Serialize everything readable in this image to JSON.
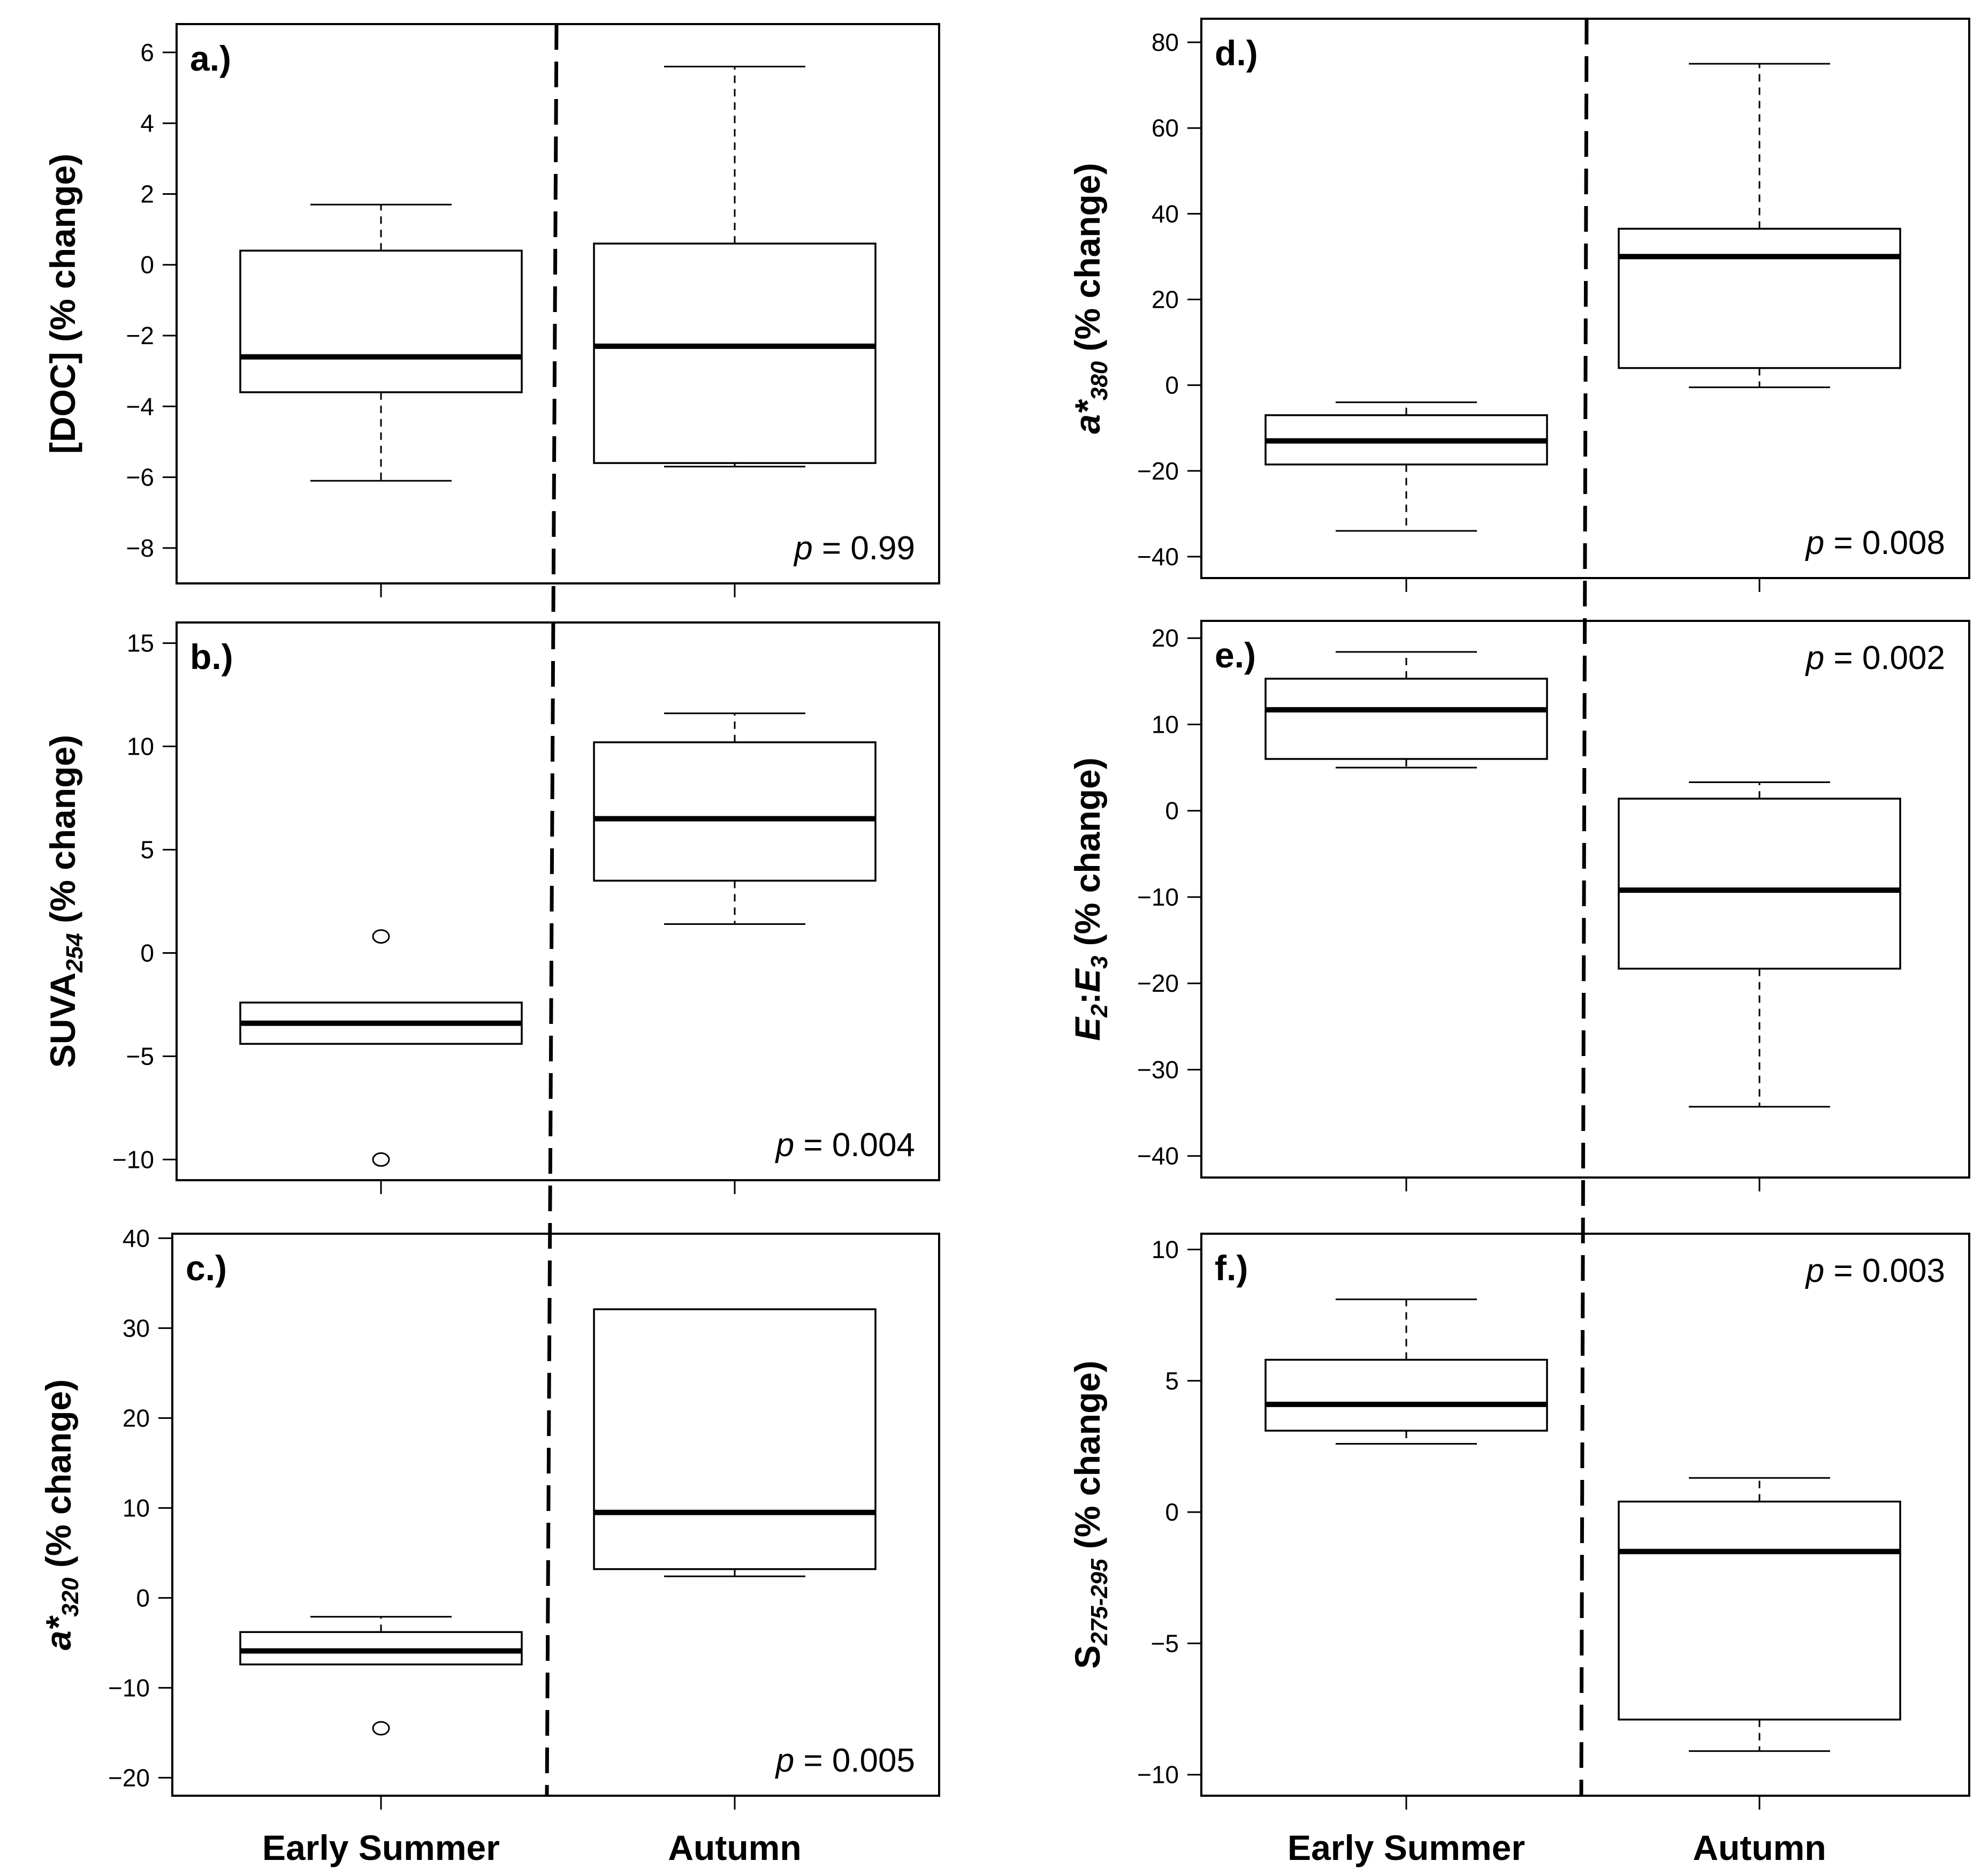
{
  "figure": {
    "categories": [
      "Early Summer",
      "Autumn"
    ],
    "colors": {
      "ink": "#000000",
      "background": "#ffffff"
    }
  },
  "chart_data": [
    {
      "type": "box",
      "panel": "a.)",
      "ylabel_parts": [
        {
          "text": "[DOC] (% change)",
          "style": "normal"
        }
      ],
      "ylim": [
        -9,
        6.8
      ],
      "yticks": [
        -8,
        -6,
        -4,
        -2,
        0,
        2,
        4,
        6
      ],
      "categories": [
        "Early Summer",
        "Autumn"
      ],
      "boxes": [
        {
          "whisker_low": -6.1,
          "q1": -3.6,
          "median": -2.6,
          "q3": 0.4,
          "whisker_high": 1.7,
          "outliers": []
        },
        {
          "whisker_low": -5.7,
          "q1": -5.6,
          "median": -2.3,
          "q3": 0.6,
          "whisker_high": 5.6,
          "outliers": []
        }
      ],
      "p_label": "p",
      "p_value": "= 0.99",
      "p_position": "bottom-right"
    },
    {
      "type": "box",
      "panel": "b.)",
      "ylabel_parts": [
        {
          "text": "SUVA",
          "style": "normal"
        },
        {
          "text": "254",
          "style": "sub"
        },
        {
          "text": " (% change)",
          "style": "normal"
        }
      ],
      "ylim": [
        -11,
        16
      ],
      "yticks": [
        -10,
        -5,
        0,
        5,
        10,
        15
      ],
      "categories": [
        "Early Summer",
        "Autumn"
      ],
      "boxes": [
        {
          "whisker_low": -4.4,
          "q1": -4.4,
          "median": -3.4,
          "q3": -2.4,
          "whisker_high": -2.4,
          "outliers": [
            0.8,
            -10.0
          ]
        },
        {
          "whisker_low": 1.4,
          "q1": 3.5,
          "median": 6.5,
          "q3": 10.2,
          "whisker_high": 11.6,
          "outliers": []
        }
      ],
      "p_label": "p",
      "p_value": "= 0.004",
      "p_position": "bottom-right"
    },
    {
      "type": "box",
      "panel": "c.)",
      "ylabel_parts": [
        {
          "text": "a*",
          "style": "italic"
        },
        {
          "text": "320",
          "style": "sub"
        },
        {
          "text": " (% change)",
          "style": "normal"
        }
      ],
      "ylim": [
        -22,
        40.5
      ],
      "yticks": [
        -20,
        -10,
        0,
        10,
        20,
        30,
        40
      ],
      "categories": [
        "Early Summer",
        "Autumn"
      ],
      "boxes": [
        {
          "whisker_low": -7.4,
          "q1": -7.4,
          "median": -5.9,
          "q3": -3.8,
          "whisker_high": -2.1,
          "outliers": [
            -14.5
          ]
        },
        {
          "whisker_low": 2.4,
          "q1": 3.2,
          "median": 9.5,
          "q3": 32.1,
          "whisker_high": 32.1,
          "outliers": []
        }
      ],
      "p_label": "p",
      "p_value": "= 0.005",
      "p_position": "bottom-right"
    },
    {
      "type": "box",
      "panel": "d.)",
      "ylabel_parts": [
        {
          "text": "a*",
          "style": "italic"
        },
        {
          "text": "380",
          "style": "sub"
        },
        {
          "text": " (% change)",
          "style": "normal"
        }
      ],
      "ylim": [
        -45,
        85.5
      ],
      "yticks": [
        -40,
        -20,
        0,
        20,
        40,
        60,
        80
      ],
      "categories": [
        "Early Summer",
        "Autumn"
      ],
      "boxes": [
        {
          "whisker_low": -34,
          "q1": -18.5,
          "median": -13,
          "q3": -7,
          "whisker_high": -4,
          "outliers": []
        },
        {
          "whisker_low": -0.5,
          "q1": 4,
          "median": 30,
          "q3": 36.5,
          "whisker_high": 75,
          "outliers": []
        }
      ],
      "p_label": "p",
      "p_value": "= 0.008",
      "p_position": "bottom-right"
    },
    {
      "type": "box",
      "panel": "e.)",
      "ylabel_parts": [
        {
          "text": "E",
          "style": "italic"
        },
        {
          "text": "2",
          "style": "sub"
        },
        {
          "text": ":",
          "style": "normal"
        },
        {
          "text": "E",
          "style": "italic"
        },
        {
          "text": "3",
          "style": "sub"
        },
        {
          "text": " (% change)",
          "style": "normal"
        }
      ],
      "ylim": [
        -42.5,
        22
      ],
      "yticks": [
        -40,
        -30,
        -20,
        -10,
        0,
        10,
        20
      ],
      "categories": [
        "Early Summer",
        "Autumn"
      ],
      "boxes": [
        {
          "whisker_low": 5,
          "q1": 6,
          "median": 11.7,
          "q3": 15.3,
          "whisker_high": 18.4,
          "outliers": []
        },
        {
          "whisker_low": -34.3,
          "q1": -18.3,
          "median": -9.2,
          "q3": 1.4,
          "whisker_high": 3.3,
          "outliers": []
        }
      ],
      "p_label": "p",
      "p_value": "= 0.002",
      "p_position": "top-right"
    },
    {
      "type": "box",
      "panel": "f.)",
      "ylabel_parts": [
        {
          "text": "S",
          "style": "normal"
        },
        {
          "text": "275-295",
          "style": "sub"
        },
        {
          "text": " (% change)",
          "style": "normal"
        }
      ],
      "ylim": [
        -10.8,
        10.6
      ],
      "yticks": [
        -10,
        -5,
        0,
        5,
        10
      ],
      "categories": [
        "Early Summer",
        "Autumn"
      ],
      "boxes": [
        {
          "whisker_low": 2.6,
          "q1": 3.1,
          "median": 4.1,
          "q3": 5.8,
          "whisker_high": 8.1,
          "outliers": []
        },
        {
          "whisker_low": -9.1,
          "q1": -7.9,
          "median": -1.5,
          "q3": 0.4,
          "whisker_high": 1.3,
          "outliers": []
        }
      ],
      "p_label": "p",
      "p_value": "= 0.003",
      "p_position": "top-right"
    }
  ]
}
